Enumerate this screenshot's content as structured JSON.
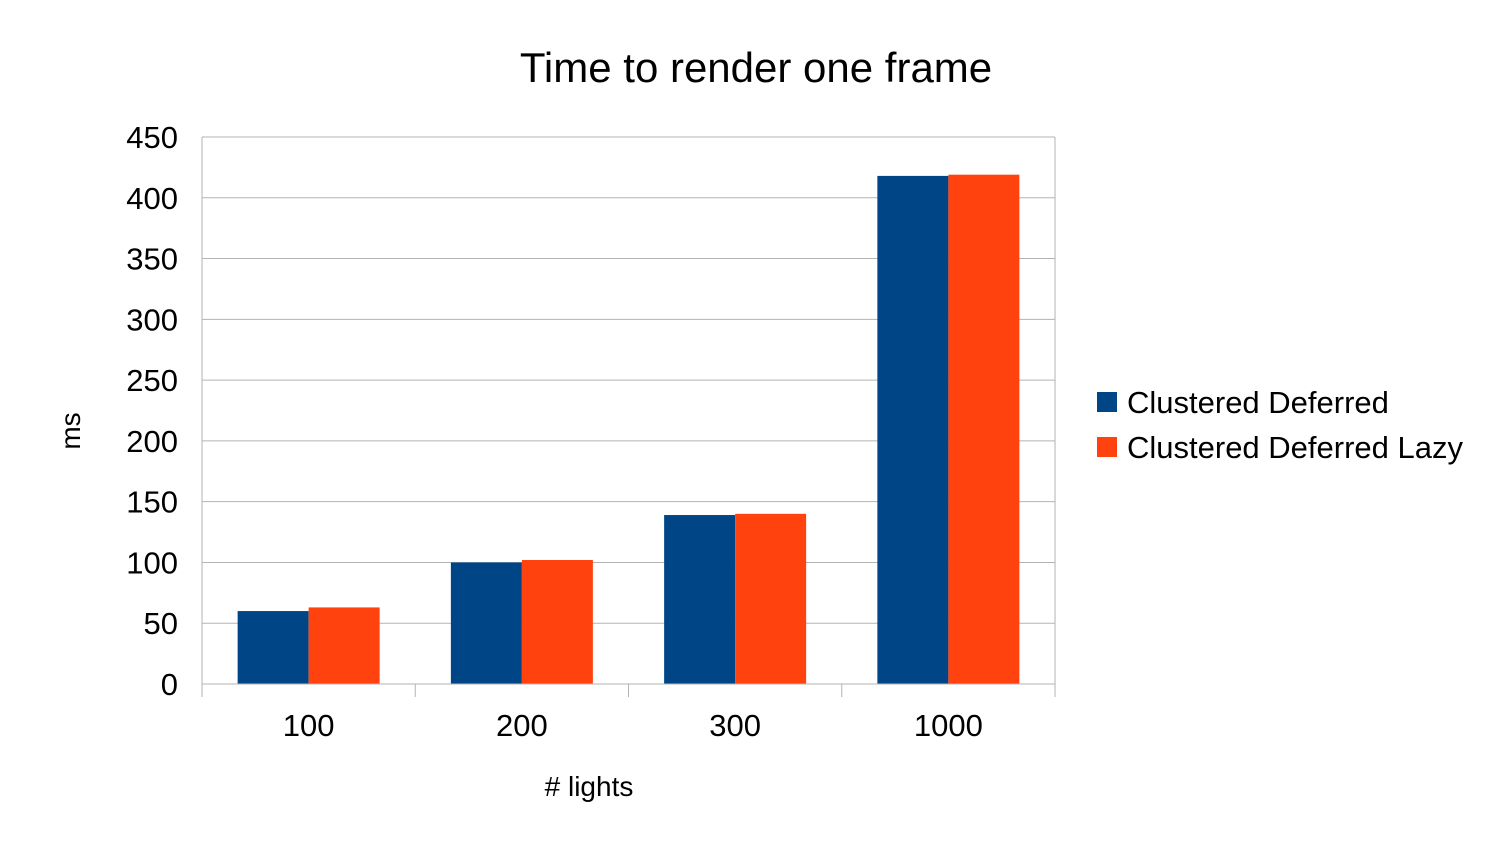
{
  "chart_data": {
    "type": "bar",
    "title": "Time to render one frame",
    "xlabel": "# lights",
    "ylabel": "ms",
    "categories": [
      "100",
      "200",
      "300",
      "1000"
    ],
    "series": [
      {
        "name": "Clustered Deferred",
        "color": "#004586",
        "values": [
          60,
          100,
          139,
          418
        ]
      },
      {
        "name": "Clustered Deferred Lazy",
        "color": "#ff420e",
        "values": [
          63,
          102,
          140,
          419
        ]
      }
    ],
    "ylim": [
      0,
      450
    ],
    "yticks": [
      0,
      50,
      100,
      150,
      200,
      250,
      300,
      350,
      400,
      450
    ],
    "grid": true,
    "legend_position": "right"
  }
}
